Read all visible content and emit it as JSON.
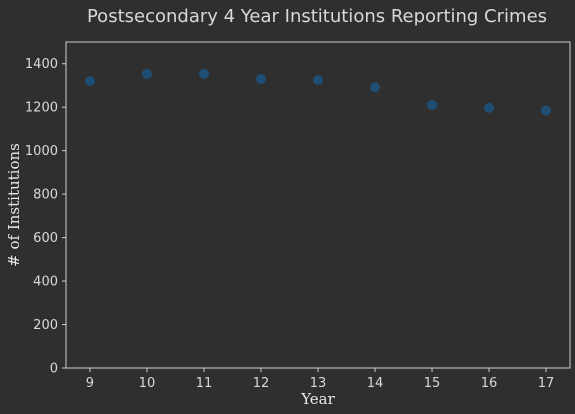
{
  "chart_data": {
    "type": "scatter",
    "title": "Postsecondary 4 Year Institutions Reporting Crimes",
    "xlabel": "Year",
    "ylabel": "# of Institutions",
    "x": [
      9,
      10,
      11,
      12,
      13,
      14,
      15,
      16,
      17
    ],
    "y": [
      1320,
      1353,
      1353,
      1330,
      1325,
      1292,
      1210,
      1197,
      1185
    ],
    "xlim": [
      8.58,
      17.42
    ],
    "ylim": [
      0,
      1500
    ],
    "xticks": [
      9,
      10,
      11,
      12,
      13,
      14,
      15,
      16,
      17
    ],
    "yticks": [
      0,
      200,
      400,
      600,
      800,
      1000,
      1200,
      1400
    ],
    "grid": false,
    "colors": {
      "background": "#2f2f2f",
      "point": "#1f4e75",
      "axis": "#cfcfcf",
      "text": "#d8d8d8"
    }
  }
}
